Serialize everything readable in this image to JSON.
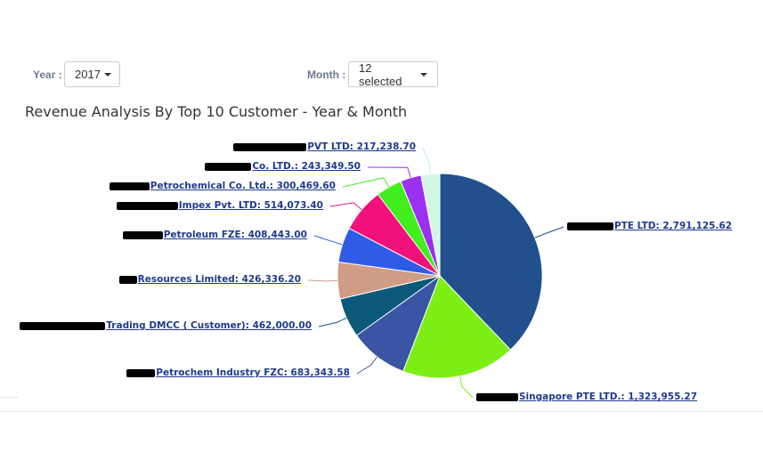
{
  "filters": {
    "year_label": "Year :",
    "year_value": "2017",
    "month_label": "Month :",
    "month_value": "12 selected"
  },
  "chart_data": {
    "type": "pie",
    "title": "Revenue Analysis By Top 10 Customer - Year & Month",
    "slices": [
      {
        "label": "PTE LTD: 2,791,125.62",
        "value": 2791125.62,
        "color": "#21508c"
      },
      {
        "label": "Singapore PTE LTD.: 1,323,955.27",
        "value": 1323955.27,
        "color": "#7def14"
      },
      {
        "label": "Petrochem Industry FZC: 683,343.58",
        "value": 683343.58,
        "color": "#3b55a5"
      },
      {
        "label": "Trading DMCC ( Customer): 462,000.00",
        "value": 462000.0,
        "color": "#0c5878"
      },
      {
        "label": "Resources Limited: 426,336.20",
        "value": 426336.2,
        "color": "#d09c86"
      },
      {
        "label": "Petroleum FZE: 408,443.00",
        "value": 408443.0,
        "color": "#2f5be6"
      },
      {
        "label": "Impex Pvt. LTD: 514,073.40",
        "value": 514073.4,
        "color": "#f0117a"
      },
      {
        "label": "Petrochemical Co. Ltd.: 300,469.60",
        "value": 300469.6,
        "color": "#42ee1e"
      },
      {
        "label": "Co. LTD.: 243,349.50",
        "value": 243349.5,
        "color": "#9b2ff2"
      },
      {
        "label": "PVT LTD: 217,238.70",
        "value": 217238.7,
        "color": "#d3f7e6"
      }
    ],
    "legend": "none",
    "note_redacted_prefixes": true
  }
}
